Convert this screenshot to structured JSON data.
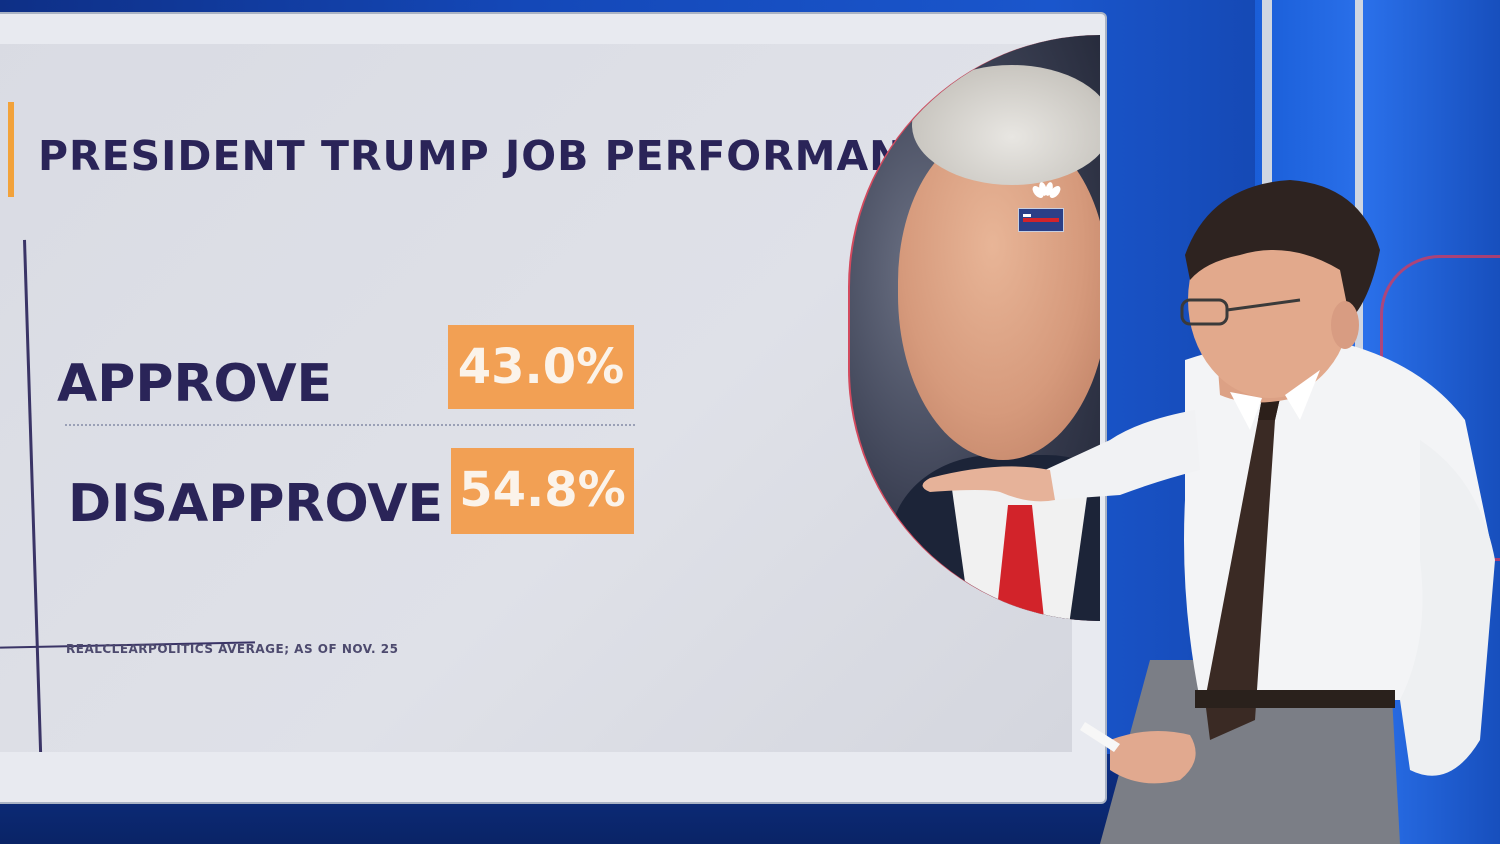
{
  "graphic": {
    "title": "PRESIDENT TRUMP JOB PERFORMANCE",
    "rows": [
      {
        "label": "APPROVE",
        "value": "43.0%"
      },
      {
        "label": "DISAPPROVE",
        "value": "54.8%"
      }
    ],
    "source": "REALCLEARPOLITICS AVERAGE; AS OF NOV. 25"
  },
  "colors": {
    "accent": "#f2a054",
    "title_text": "#2a2458",
    "background_blue": "#1448b8",
    "tie_red": "#d2232a"
  },
  "icons": [
    "network-peacock-icon",
    "network-bug-icon"
  ]
}
